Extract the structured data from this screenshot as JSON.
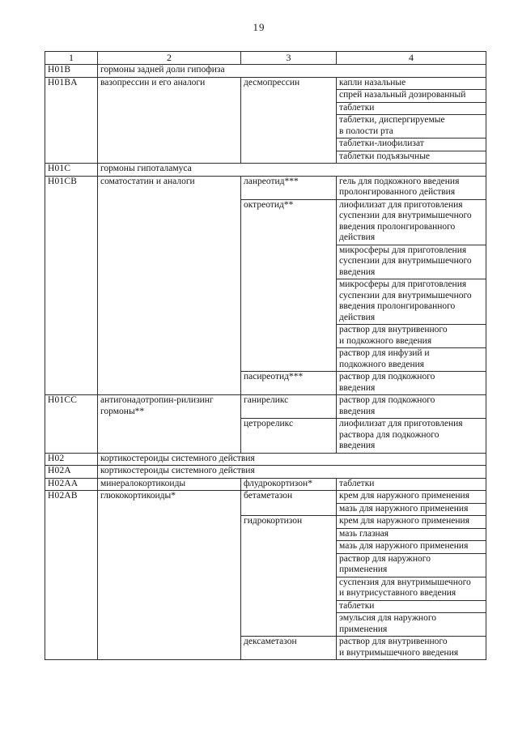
{
  "page": {
    "number": "19"
  },
  "table": {
    "column_headers": [
      "1",
      "2",
      "3",
      "4"
    ],
    "sections": [
      {
        "code": "H01B",
        "name": "гормоны задней доли гипофиза",
        "drugs": []
      },
      {
        "code": "H01BA",
        "name": "вазопрессин и его аналоги",
        "drugs": [
          {
            "name": "десмопрессин",
            "forms": [
              "капли назальные",
              "спрей назальный дозированный",
              "таблетки",
              "таблетки, диспергируемые\nв полости рта",
              "таблетки-лиофилизат",
              "таблетки подъязычные"
            ]
          }
        ]
      },
      {
        "code": "H01C",
        "name": "гормоны гипоталамуса",
        "drugs": []
      },
      {
        "code": "H01CB",
        "name": "соматостатин и аналоги",
        "drugs": [
          {
            "name": "ланреотид***",
            "forms": [
              "гель для подкожного введения\nпролонгированного действия"
            ]
          },
          {
            "name": "октреотид**",
            "forms": [
              "лиофилизат для приготовления\nсуспензии для внутримышечного\nвведения пролонгированного\nдействия",
              "микросферы для приготовления\nсуспензии для внутримышечного\nвведения",
              "микросферы для приготовления\nсуспензии для внутримышечного\nвведения пролонгированного\nдействия",
              "раствор для внутривенного\nи подкожного введения",
              "раствор для инфузий и\nподкожного введения"
            ]
          },
          {
            "name": "пасиреотид***",
            "forms": [
              "раствор для подкожного\nвведения"
            ]
          }
        ]
      },
      {
        "code": "H01CC",
        "name": "антигонадотропин-рилизинг\nгормоны**",
        "drugs": [
          {
            "name": "ганиреликс",
            "forms": [
              "раствор для подкожного\nвведения"
            ]
          },
          {
            "name": "цетрореликс",
            "forms": [
              "лиофилизат для приготовления\nраствора для подкожного\nвведения"
            ]
          }
        ]
      },
      {
        "code": "H02",
        "name": "кортикостероиды системного действия",
        "drugs": []
      },
      {
        "code": "H02A",
        "name": "кортикостероиды системного действия",
        "drugs": []
      },
      {
        "code": "H02AA",
        "name": "минералокортикоиды",
        "drugs": [
          {
            "name": "флудрокортизон*",
            "forms": [
              "таблетки"
            ]
          }
        ]
      },
      {
        "code": "H02AB",
        "name": "глюкокортикоиды*",
        "drugs": [
          {
            "name": "бетаметазон",
            "forms": [
              "крем для наружного применения",
              "мазь для наружного применения"
            ]
          },
          {
            "name": "гидрокортизон",
            "forms": [
              "крем для наружного применения",
              "мазь глазная",
              "мазь для наружного применения",
              "раствор для наружного\nприменения",
              "суспензия для внутримышечного\nи внутрисуставного введения",
              "таблетки",
              "эмульсия для наружного\nприменения"
            ]
          },
          {
            "name": "дексаметазон",
            "forms": [
              "раствор для внутривенного\nи внутримышечного введения"
            ]
          }
        ]
      }
    ]
  }
}
